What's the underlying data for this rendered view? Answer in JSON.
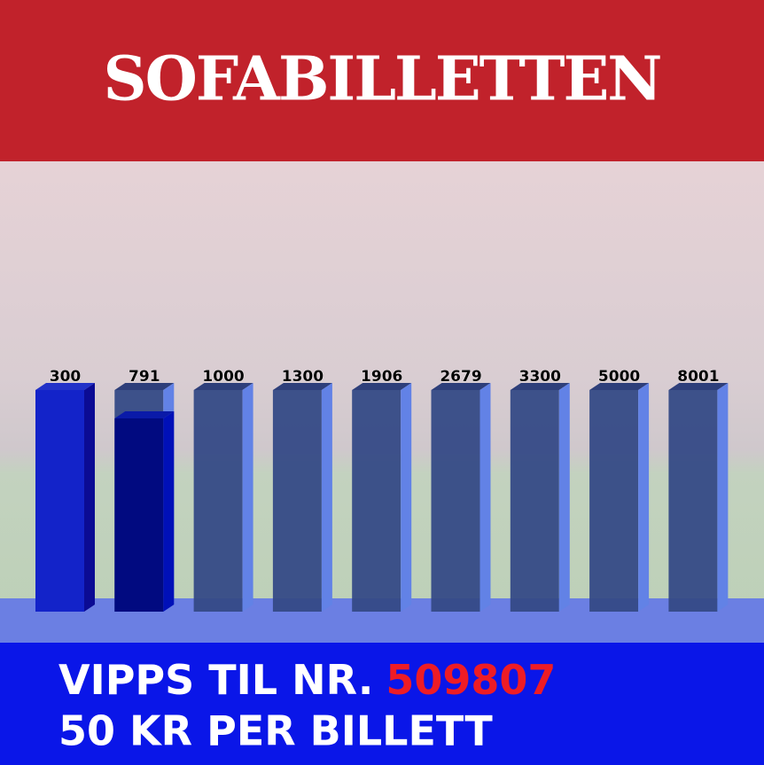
{
  "title": "SOFABILLETTEN",
  "milestones": [
    300,
    791,
    1000,
    1300,
    1906,
    2679,
    3300,
    5000,
    8001
  ],
  "footer": {
    "line1": "VIPPS TIL NR.",
    "number": "509807",
    "line2": "50 KR PER BILLETT"
  }
}
